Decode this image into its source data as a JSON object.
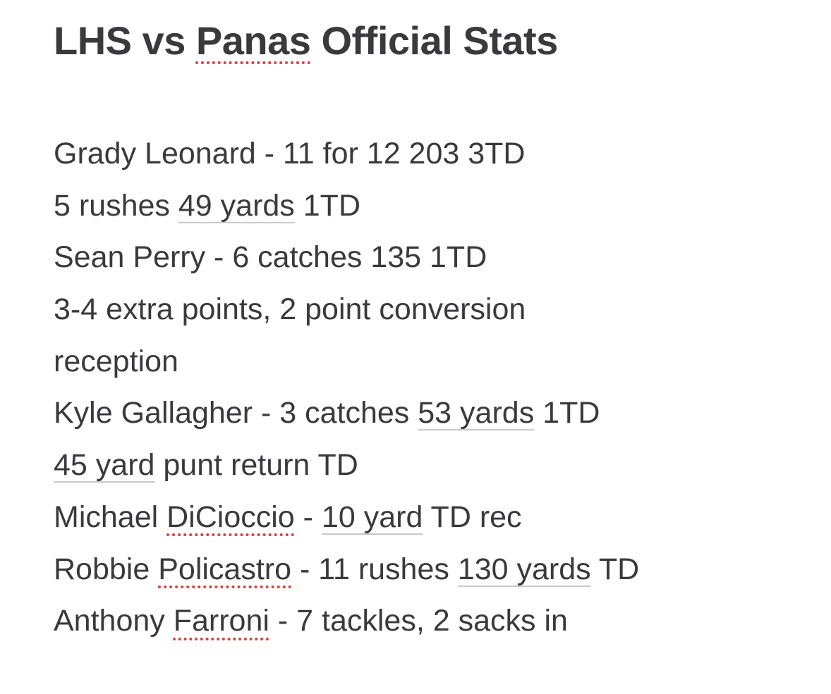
{
  "note": {
    "title": {
      "prefix": "LHS vs ",
      "misspelled": "Panas",
      "suffix": " Official Stats"
    },
    "lines": {
      "l1": {
        "text": "Grady Leonard - 11 for 12 203 3TD"
      },
      "l2": {
        "a": "5 rushes ",
        "link": "49 yards",
        "b": " 1TD"
      },
      "l3": {
        "text": "Sean Perry - 6 catches 135 1TD"
      },
      "l4": {
        "text": "3-4 extra points, 2 point conversion"
      },
      "l5": {
        "text": "reception"
      },
      "l6": {
        "a": "Kyle Gallagher - 3 catches ",
        "link": "53 yards",
        "b": " 1TD"
      },
      "l7": {
        "link": "45 yard",
        "b": " punt return TD"
      },
      "l8": {
        "a": "Michael ",
        "misspelled": "DiCioccio",
        "b": " - ",
        "link": "10 yard",
        "c": " TD rec"
      },
      "l9": {
        "a": "Robbie ",
        "misspelled": "Policastro",
        "b": " - 11 rushes ",
        "link": "130 yards",
        "c": " TD"
      },
      "l10": {
        "a": "Anthony ",
        "misspelled": "Farroni",
        "b": " - 7 tackles, 2 sacks in"
      }
    }
  }
}
